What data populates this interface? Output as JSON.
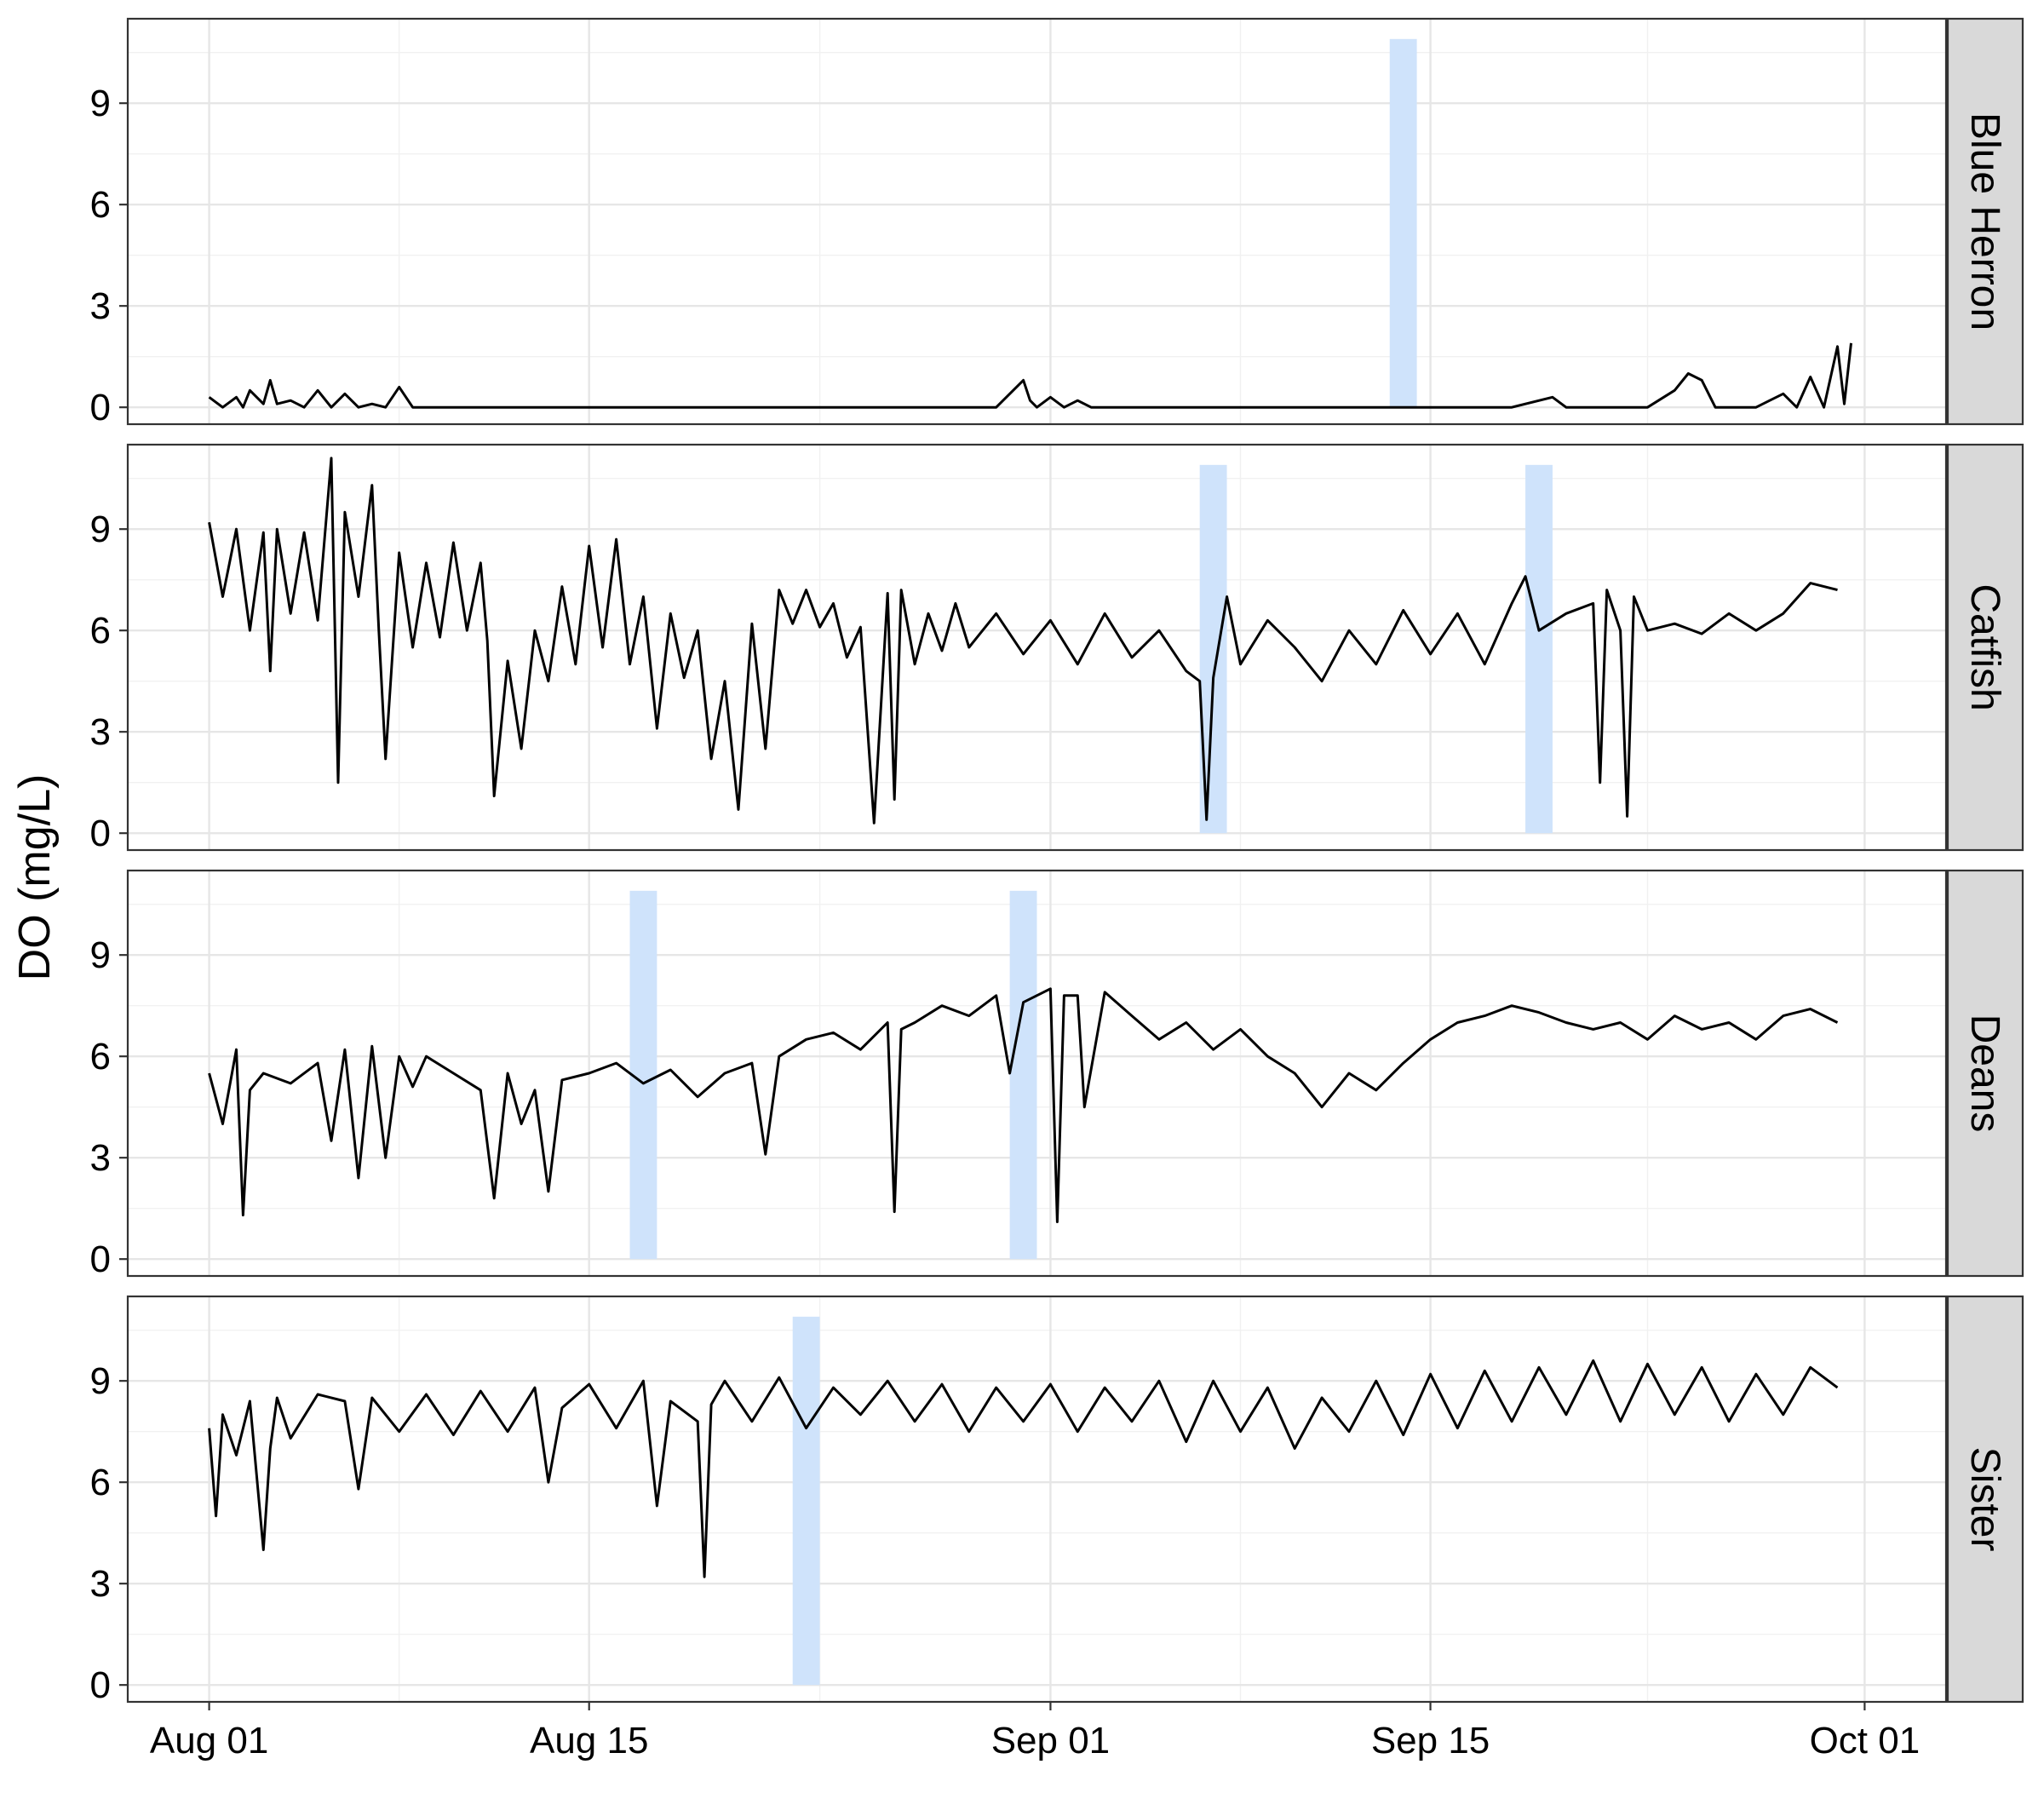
{
  "chart_data": {
    "type": "line",
    "title": "",
    "xlabel": "",
    "ylabel": "DO (mg/L)",
    "xlim": [
      "2018-07-29",
      "2018-10-04"
    ],
    "ylim": [
      -0.5,
      11.5
    ],
    "x_ticks": [
      {
        "date": "2018-08-01",
        "label": "Aug 01"
      },
      {
        "date": "2018-08-15",
        "label": "Aug 15"
      },
      {
        "date": "2018-09-01",
        "label": "Sep 01"
      },
      {
        "date": "2018-09-15",
        "label": "Sep 15"
      },
      {
        "date": "2018-10-01",
        "label": "Oct 01"
      }
    ],
    "y_ticks": [
      0,
      3,
      6,
      9
    ],
    "grid": true,
    "panels": [
      {
        "name": "Blue Herron",
        "highlights": [
          [
            "2018-09-13T12:00",
            "2018-09-14T12:00"
          ]
        ],
        "series": {
          "x": [
            "2018-08-01",
            "2018-08-01T12:00",
            "2018-08-02",
            "2018-08-02T06:00",
            "2018-08-02T12:00",
            "2018-08-03",
            "2018-08-03T06:00",
            "2018-08-03T12:00",
            "2018-08-04",
            "2018-08-04T12:00",
            "2018-08-05",
            "2018-08-05T12:00",
            "2018-08-06",
            "2018-08-06T12:00",
            "2018-08-07",
            "2018-08-07T12:00",
            "2018-08-08",
            "2018-08-08T12:00",
            "2018-08-09",
            "2018-08-10",
            "2018-08-15",
            "2018-08-20",
            "2018-08-25",
            "2018-08-30",
            "2018-08-31",
            "2018-08-31T06:00",
            "2018-08-31T12:00",
            "2018-09-01",
            "2018-09-01T12:00",
            "2018-09-02",
            "2018-09-02T12:00",
            "2018-09-03",
            "2018-09-10",
            "2018-09-15",
            "2018-09-18",
            "2018-09-19T12:00",
            "2018-09-20",
            "2018-09-23",
            "2018-09-24",
            "2018-09-24T12:00",
            "2018-09-25",
            "2018-09-25T12:00",
            "2018-09-26",
            "2018-09-27",
            "2018-09-27T12:00",
            "2018-09-28",
            "2018-09-28T12:00",
            "2018-09-29",
            "2018-09-29T12:00",
            "2018-09-30",
            "2018-09-30T06:00",
            "2018-09-30T12:00"
          ],
          "y": [
            0.3,
            0,
            0.3,
            0,
            0.5,
            0.1,
            0.8,
            0.1,
            0.2,
            0,
            0.5,
            0,
            0.4,
            0,
            0.1,
            0,
            0.6,
            0,
            0,
            0,
            0,
            0,
            0,
            0,
            0.8,
            0.2,
            0,
            0.3,
            0,
            0.2,
            0,
            0,
            0,
            0,
            0,
            0.3,
            0,
            0,
            0.5,
            1.0,
            0.8,
            0,
            0,
            0,
            0.2,
            0.4,
            0,
            0.9,
            0,
            1.8,
            0.1,
            1.9
          ]
        }
      },
      {
        "name": "Catfish",
        "highlights": [
          [
            "2018-09-06T12:00",
            "2018-09-07T12:00"
          ],
          [
            "2018-09-18T12:00",
            "2018-09-19T12:00"
          ]
        ],
        "series": {
          "x": [
            "2018-08-01",
            "2018-08-01T12:00",
            "2018-08-02",
            "2018-08-02T12:00",
            "2018-08-03",
            "2018-08-03T06:00",
            "2018-08-03T12:00",
            "2018-08-04",
            "2018-08-04T12:00",
            "2018-08-05",
            "2018-08-05T12:00",
            "2018-08-05T18:00",
            "2018-08-06",
            "2018-08-06T12:00",
            "2018-08-07",
            "2018-08-07T06:00",
            "2018-08-07T12:00",
            "2018-08-08",
            "2018-08-08T12:00",
            "2018-08-09",
            "2018-08-09T12:00",
            "2018-08-10",
            "2018-08-10T12:00",
            "2018-08-11",
            "2018-08-11T06:00",
            "2018-08-11T12:00",
            "2018-08-12",
            "2018-08-12T12:00",
            "2018-08-13",
            "2018-08-13T12:00",
            "2018-08-14",
            "2018-08-14T12:00",
            "2018-08-15",
            "2018-08-15T12:00",
            "2018-08-16",
            "2018-08-16T12:00",
            "2018-08-17",
            "2018-08-17T12:00",
            "2018-08-18",
            "2018-08-18T12:00",
            "2018-08-19",
            "2018-08-19T12:00",
            "2018-08-20",
            "2018-08-20T12:00",
            "2018-08-21",
            "2018-08-21T12:00",
            "2018-08-22",
            "2018-08-22T12:00",
            "2018-08-23",
            "2018-08-23T12:00",
            "2018-08-24",
            "2018-08-24T12:00",
            "2018-08-25",
            "2018-08-25T12:00",
            "2018-08-26",
            "2018-08-26T06:00",
            "2018-08-26T12:00",
            "2018-08-27",
            "2018-08-27T12:00",
            "2018-08-28",
            "2018-08-28T12:00",
            "2018-08-29",
            "2018-08-30",
            "2018-08-31",
            "2018-09-01",
            "2018-09-02",
            "2018-09-03",
            "2018-09-04",
            "2018-09-05",
            "2018-09-06",
            "2018-09-06T12:00",
            "2018-09-06T18:00",
            "2018-09-07",
            "2018-09-07T12:00",
            "2018-09-08",
            "2018-09-09",
            "2018-09-10",
            "2018-09-11",
            "2018-09-12",
            "2018-09-13",
            "2018-09-14",
            "2018-09-15",
            "2018-09-16",
            "2018-09-17",
            "2018-09-18",
            "2018-09-18T12:00",
            "2018-09-19",
            "2018-09-20",
            "2018-09-21",
            "2018-09-21T06:00",
            "2018-09-21T12:00",
            "2018-09-22",
            "2018-09-22T06:00",
            "2018-09-22T12:00",
            "2018-09-23",
            "2018-09-24",
            "2018-09-25",
            "2018-09-26",
            "2018-09-27",
            "2018-09-28",
            "2018-09-29",
            "2018-09-30"
          ],
          "y": [
            9.2,
            7.0,
            9.0,
            6.0,
            8.9,
            4.8,
            9.0,
            6.5,
            8.9,
            6.3,
            11.1,
            1.5,
            9.5,
            7.0,
            10.3,
            6.0,
            2.2,
            8.3,
            5.5,
            8.0,
            5.8,
            8.6,
            6.0,
            8.0,
            5.7,
            1.1,
            5.1,
            2.5,
            6.0,
            4.5,
            7.3,
            5.0,
            8.5,
            5.5,
            8.7,
            5.0,
            7.0,
            3.1,
            6.5,
            4.6,
            6.0,
            2.2,
            4.5,
            0.7,
            6.2,
            2.5,
            7.2,
            6.2,
            7.2,
            6.1,
            6.8,
            5.2,
            6.1,
            0.3,
            7.1,
            1.0,
            7.2,
            5.0,
            6.5,
            5.4,
            6.8,
            5.5,
            6.5,
            5.3,
            6.3,
            5.0,
            6.5,
            5.2,
            6.0,
            4.8,
            4.5,
            0.4,
            4.6,
            7.0,
            5.0,
            6.3,
            5.5,
            4.5,
            6.0,
            5.0,
            6.6,
            5.3,
            6.5,
            5.0,
            6.8,
            7.6,
            6.0,
            6.5,
            6.8,
            1.5,
            7.2,
            6.0,
            0.5,
            7.0,
            6.0,
            6.2,
            5.9,
            6.5,
            6.0,
            6.5,
            7.4,
            7.2
          ]
        }
      },
      {
        "name": "Deans",
        "highlights": [
          [
            "2018-08-16T12:00",
            "2018-08-17T12:00"
          ],
          [
            "2018-08-30T12:00",
            "2018-08-31T12:00"
          ]
        ],
        "series": {
          "x": [
            "2018-08-01",
            "2018-08-01T12:00",
            "2018-08-02",
            "2018-08-02T06:00",
            "2018-08-02T12:00",
            "2018-08-03",
            "2018-08-04",
            "2018-08-05",
            "2018-08-05T12:00",
            "2018-08-06",
            "2018-08-06T12:00",
            "2018-08-07",
            "2018-08-07T12:00",
            "2018-08-08",
            "2018-08-08T12:00",
            "2018-08-09",
            "2018-08-10",
            "2018-08-11",
            "2018-08-11T12:00",
            "2018-08-12",
            "2018-08-12T12:00",
            "2018-08-13",
            "2018-08-13T12:00",
            "2018-08-14",
            "2018-08-15",
            "2018-08-16",
            "2018-08-17",
            "2018-08-18",
            "2018-08-19",
            "2018-08-20",
            "2018-08-21",
            "2018-08-21T12:00",
            "2018-08-22",
            "2018-08-23",
            "2018-08-24",
            "2018-08-25",
            "2018-08-26",
            "2018-08-26T06:00",
            "2018-08-26T12:00",
            "2018-08-27",
            "2018-08-28",
            "2018-08-29",
            "2018-08-30",
            "2018-08-30T12:00",
            "2018-08-31",
            "2018-09-01",
            "2018-09-01T06:00",
            "2018-09-01T12:00",
            "2018-09-02",
            "2018-09-02T06:00",
            "2018-09-03",
            "2018-09-04",
            "2018-09-05",
            "2018-09-06",
            "2018-09-07",
            "2018-09-08",
            "2018-09-09",
            "2018-09-10",
            "2018-09-11",
            "2018-09-12",
            "2018-09-13",
            "2018-09-14",
            "2018-09-15",
            "2018-09-16",
            "2018-09-17",
            "2018-09-18",
            "2018-09-19",
            "2018-09-20",
            "2018-09-21",
            "2018-09-22",
            "2018-09-23",
            "2018-09-24",
            "2018-09-25",
            "2018-09-26",
            "2018-09-27",
            "2018-09-28",
            "2018-09-29",
            "2018-09-30"
          ],
          "y": [
            5.5,
            4.0,
            6.2,
            1.3,
            5.0,
            5.5,
            5.2,
            5.8,
            3.5,
            6.2,
            2.4,
            6.3,
            3.0,
            6.0,
            5.1,
            6.0,
            5.5,
            5.0,
            1.8,
            5.5,
            4.0,
            5.0,
            2.0,
            5.3,
            5.5,
            5.8,
            5.2,
            5.6,
            4.8,
            5.5,
            5.8,
            3.1,
            6.0,
            6.5,
            6.7,
            6.2,
            7.0,
            1.4,
            6.8,
            7.0,
            7.5,
            7.2,
            7.8,
            5.5,
            7.6,
            8.0,
            1.1,
            7.8,
            7.8,
            4.5,
            7.9,
            7.2,
            6.5,
            7.0,
            6.2,
            6.8,
            6.0,
            5.5,
            4.5,
            5.5,
            5.0,
            5.8,
            6.5,
            7.0,
            7.2,
            7.5,
            7.3,
            7.0,
            6.8,
            7.0,
            6.5,
            7.2,
            6.8,
            7.0,
            6.5,
            7.2,
            7.4,
            7.0
          ]
        }
      },
      {
        "name": "Sister",
        "highlights": [
          [
            "2018-08-22T12:00",
            "2018-08-23T12:00"
          ]
        ],
        "series": {
          "x": [
            "2018-08-01",
            "2018-08-01T06:00",
            "2018-08-01T12:00",
            "2018-08-02",
            "2018-08-02T12:00",
            "2018-08-03",
            "2018-08-03T06:00",
            "2018-08-03T12:00",
            "2018-08-04",
            "2018-08-05",
            "2018-08-06",
            "2018-08-06T12:00",
            "2018-08-07",
            "2018-08-08",
            "2018-08-09",
            "2018-08-10",
            "2018-08-11",
            "2018-08-12",
            "2018-08-13",
            "2018-08-13T12:00",
            "2018-08-14",
            "2018-08-15",
            "2018-08-16",
            "2018-08-17",
            "2018-08-17T12:00",
            "2018-08-18",
            "2018-08-19",
            "2018-08-19T06:00",
            "2018-08-19T12:00",
            "2018-08-20",
            "2018-08-21",
            "2018-08-22",
            "2018-08-23",
            "2018-08-24",
            "2018-08-25",
            "2018-08-26",
            "2018-08-27",
            "2018-08-28",
            "2018-08-29",
            "2018-08-30",
            "2018-08-31",
            "2018-09-01",
            "2018-09-02",
            "2018-09-03",
            "2018-09-04",
            "2018-09-05",
            "2018-09-06",
            "2018-09-07",
            "2018-09-08",
            "2018-09-09",
            "2018-09-10",
            "2018-09-11",
            "2018-09-12",
            "2018-09-13",
            "2018-09-14",
            "2018-09-15",
            "2018-09-16",
            "2018-09-17",
            "2018-09-18",
            "2018-09-19",
            "2018-09-20",
            "2018-09-21",
            "2018-09-22",
            "2018-09-23",
            "2018-09-24",
            "2018-09-25",
            "2018-09-26",
            "2018-09-27",
            "2018-09-28",
            "2018-09-29",
            "2018-09-30"
          ],
          "y": [
            7.6,
            5.0,
            8.0,
            6.8,
            8.4,
            4.0,
            7.0,
            8.5,
            7.3,
            8.6,
            8.4,
            5.8,
            8.5,
            7.5,
            8.6,
            7.4,
            8.7,
            7.5,
            8.8,
            6.0,
            8.2,
            8.9,
            7.6,
            9.0,
            5.3,
            8.4,
            7.8,
            3.2,
            8.3,
            9.0,
            7.8,
            9.1,
            7.6,
            8.8,
            8.0,
            9.0,
            7.8,
            8.9,
            7.5,
            8.8,
            7.8,
            8.9,
            7.5,
            8.8,
            7.8,
            9.0,
            7.2,
            9.0,
            7.5,
            8.8,
            7.0,
            8.5,
            7.5,
            9.0,
            7.4,
            9.2,
            7.6,
            9.3,
            7.8,
            9.4,
            8.0,
            9.6,
            7.8,
            9.5,
            8.0,
            9.4,
            7.8,
            9.2,
            8.0,
            9.4,
            8.8
          ]
        }
      }
    ]
  }
}
